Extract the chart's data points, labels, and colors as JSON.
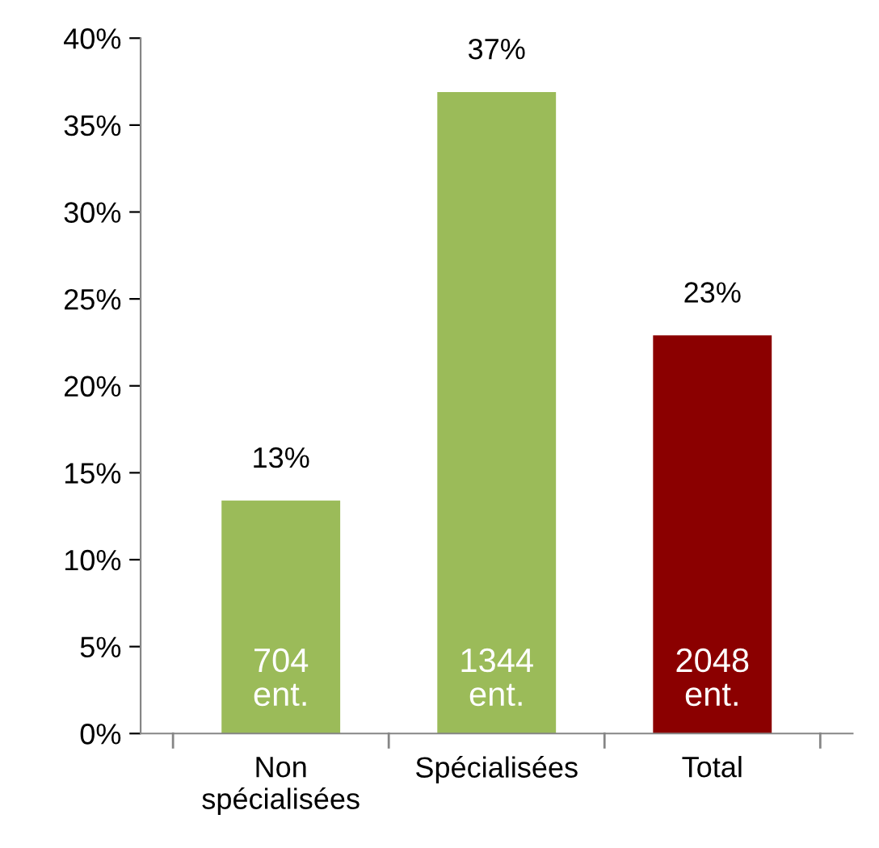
{
  "chart_data": {
    "type": "bar",
    "categories": [
      "Non\nspécialisées",
      "Spécialisées",
      "Total"
    ],
    "values": [
      13.4,
      36.9,
      22.9
    ],
    "colors": [
      "#9bbb59",
      "#9bbb59",
      "#8b0000"
    ],
    "value_labels": [
      "13%",
      "37%",
      "23%"
    ],
    "annotations": [
      "704\nent.",
      "1344\nent.",
      "2048\nent."
    ],
    "ylim": [
      0,
      40
    ],
    "yticks": [
      {
        "value": 0,
        "label": "0%"
      },
      {
        "value": 5,
        "label": "5%"
      },
      {
        "value": 10,
        "label": "10%"
      },
      {
        "value": 15,
        "label": "15%"
      },
      {
        "value": 20,
        "label": "20%"
      },
      {
        "value": 25,
        "label": "25%"
      },
      {
        "value": 30,
        "label": "30%"
      },
      {
        "value": 35,
        "label": "35%"
      },
      {
        "value": 40,
        "label": "40%"
      }
    ],
    "grid": false,
    "legend": false
  }
}
